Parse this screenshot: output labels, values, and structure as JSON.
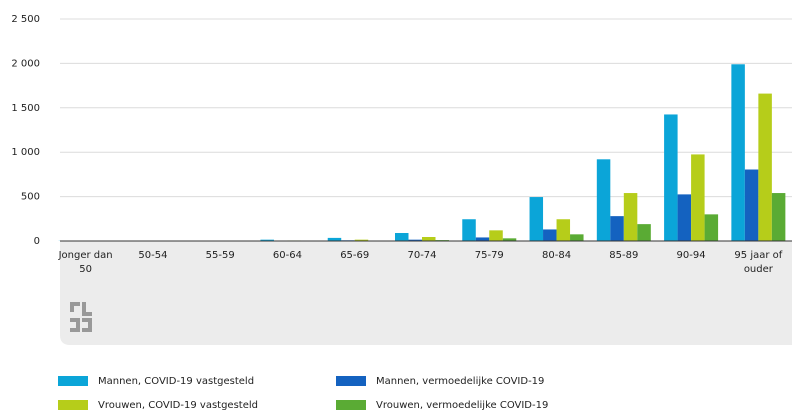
{
  "chart_data": {
    "type": "bar",
    "categories": [
      "Jonger dan 50",
      "50-54",
      "55-59",
      "60-64",
      "65-69",
      "70-74",
      "75-79",
      "80-84",
      "85-89",
      "90-94",
      "95 jaar of ouder"
    ],
    "series": [
      {
        "name": "Mannen, COVID-19 vastgesteld",
        "color": "#0ba5d8",
        "values": [
          2,
          3,
          5,
          15,
          35,
          90,
          245,
          495,
          920,
          1425,
          1990
        ]
      },
      {
        "name": "Mannen, vermoedelijke COVID-19",
        "color": "#1462c0",
        "values": [
          0,
          1,
          1,
          3,
          8,
          15,
          40,
          130,
          280,
          525,
          805
        ]
      },
      {
        "name": "Vrouwen, COVID-19 vastgesteld",
        "color": "#b6cd1a",
        "values": [
          1,
          2,
          3,
          6,
          15,
          45,
          120,
          245,
          540,
          975,
          1660
        ]
      },
      {
        "name": "Vrouwen, vermoedelijke COVID-19",
        "color": "#5aab34",
        "values": [
          0,
          0,
          1,
          2,
          4,
          10,
          30,
          75,
          190,
          300,
          540
        ]
      }
    ],
    "ylim": [
      0,
      2500
    ],
    "yticks": [
      0,
      500,
      {
        "value": 1000,
        "label": "1 000"
      },
      {
        "value": 1500,
        "label": "1 500"
      },
      {
        "value": 2000,
        "label": "2 000"
      },
      {
        "value": 2500,
        "label": "2 500"
      }
    ],
    "grid": true
  }
}
